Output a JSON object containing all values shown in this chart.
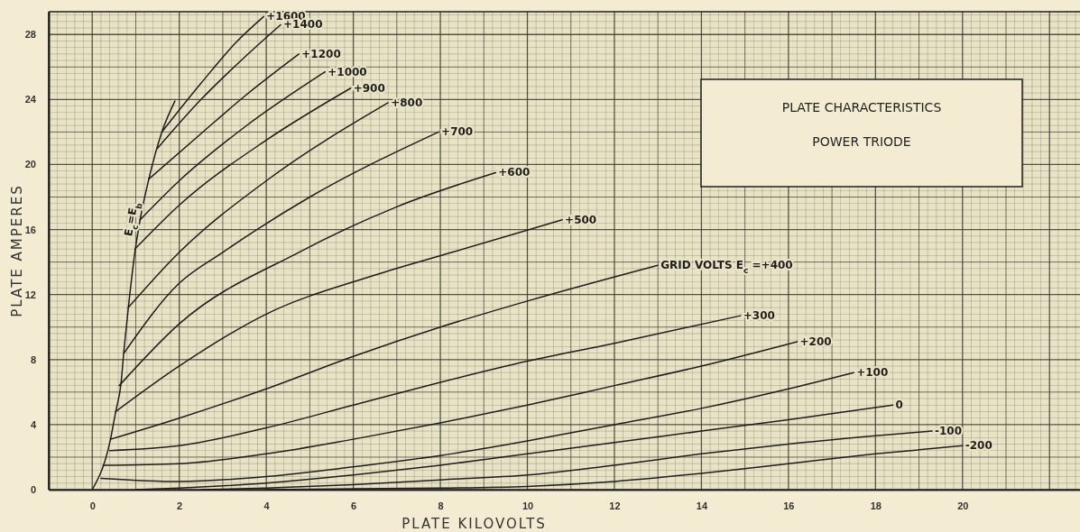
{
  "chart_data": {
    "type": "line",
    "title": "PLATE CHARACTERISTICS",
    "subtitle": "POWER TRIODE",
    "xlabel": "PLATE KILOVOLTS",
    "ylabel": "PLATE AMPERES",
    "xlim": [
      -1,
      22.7
    ],
    "ylim": [
      0,
      29.4
    ],
    "xticks": [
      0,
      2,
      4,
      6,
      8,
      10,
      12,
      14,
      16,
      18,
      20
    ],
    "yticks": [
      0,
      4,
      8,
      12,
      16,
      20,
      24,
      28
    ],
    "grid": true,
    "marker": "none",
    "line_style": "solid",
    "series": [
      {
        "name": "E$_{c}$=E$_{b}$",
        "color": "#1e1e1e",
        "x": [
          0,
          0.42,
          0.54,
          0.66,
          0.73,
          0.83,
          0.98,
          1.1,
          1.3,
          1.6,
          1.9
        ],
        "values": [
          0,
          3.1,
          4.8,
          6.5,
          8.6,
          11.2,
          14.6,
          16.6,
          19.1,
          22,
          23.9
        ]
      },
      {
        "name": "+1600",
        "color": "#1e1e1e",
        "x": [
          1.6,
          2.5,
          3.3,
          3.94
        ],
        "values": [
          22,
          25,
          27.5,
          29.1
        ]
      },
      {
        "name": "+1400",
        "color": "#1e1e1e",
        "x": [
          1.5,
          2.5,
          3.5,
          4.33
        ],
        "values": [
          21,
          24,
          26.6,
          28.6
        ]
      },
      {
        "name": "+1200",
        "color": "#1e1e1e",
        "x": [
          1.3,
          2.5,
          3.5,
          4.75
        ],
        "values": [
          19.1,
          21.9,
          24.2,
          26.8
        ]
      },
      {
        "name": "+1000",
        "color": "#1e1e1e",
        "x": [
          1.1,
          2,
          3.5,
          5.35
        ],
        "values": [
          16.6,
          19,
          22.3,
          25.7
        ]
      },
      {
        "name": "+900",
        "color": "#1e1e1e",
        "x": [
          0.98,
          2,
          4,
          5.94
        ],
        "values": [
          14.8,
          17.5,
          21.5,
          24.7
        ]
      },
      {
        "name": "+800",
        "color": "#1e1e1e",
        "x": [
          0.83,
          2,
          4,
          6.8
        ],
        "values": [
          11.2,
          14.6,
          19,
          23.8
        ]
      },
      {
        "name": "+700",
        "color": "#1e1e1e",
        "x": [
          0.73,
          2,
          3,
          5,
          7.96
        ],
        "values": [
          8.4,
          12.7,
          14.6,
          18,
          22
        ]
      },
      {
        "name": "+600",
        "color": "#1e1e1e",
        "x": [
          0.62,
          2,
          4.75,
          7,
          9.27
        ],
        "values": [
          6.4,
          10.2,
          14.6,
          17.4,
          19.5
        ]
      },
      {
        "name": "+500",
        "color": "#1e1e1e",
        "x": [
          0.54,
          2,
          4,
          6.5,
          8.27,
          10.8
        ],
        "values": [
          4.8,
          7.6,
          10.8,
          13.2,
          14.6,
          16.6
        ]
      },
      {
        "name": "GRID VOLTS E$_{c}$ =+400",
        "color": "#1e1e1e",
        "x": [
          0.42,
          2,
          4,
          6,
          8,
          10,
          13
        ],
        "values": [
          3.1,
          4.4,
          6.2,
          8.2,
          10,
          11.6,
          13.8
        ]
      },
      {
        "name": "+300",
        "color": "#1e1e1e",
        "x": [
          0.4,
          2,
          4,
          6,
          8,
          10,
          12,
          14.9
        ],
        "values": [
          2.4,
          2.7,
          3.8,
          5.2,
          6.6,
          7.9,
          9,
          10.7
        ]
      },
      {
        "name": "+200",
        "color": "#1e1e1e",
        "x": [
          0.25,
          2,
          4,
          6,
          8,
          10,
          12,
          14,
          16.2
        ],
        "values": [
          1.5,
          1.6,
          2.2,
          3.1,
          4.1,
          5.2,
          6.4,
          7.6,
          9.1
        ]
      },
      {
        "name": "+100",
        "color": "#1e1e1e",
        "x": [
          0.2,
          2,
          4,
          6,
          8,
          10,
          12,
          14,
          16,
          17.5
        ],
        "values": [
          0.7,
          0.5,
          0.8,
          1.4,
          2.1,
          3,
          4,
          5,
          6.2,
          7.2
        ]
      },
      {
        "name": "0",
        "color": "#1e1e1e",
        "x": [
          1,
          2,
          4,
          6,
          8,
          10,
          12,
          14,
          16,
          18.4
        ],
        "values": [
          0,
          0.1,
          0.4,
          0.9,
          1.5,
          2.2,
          2.9,
          3.6,
          4.3,
          5.2
        ]
      },
      {
        "name": "-100",
        "color": "#1e1e1e",
        "x": [
          2.5,
          4,
          6,
          8,
          10,
          12,
          14,
          16,
          19.3
        ],
        "values": [
          0,
          0.1,
          0.3,
          0.6,
          0.9,
          1.5,
          2.2,
          2.8,
          3.6
        ]
      },
      {
        "name": "-200",
        "color": "#1e1e1e",
        "x": [
          4,
          6,
          8,
          10,
          12,
          14,
          16,
          18,
          20
        ],
        "values": [
          0,
          0.05,
          0.1,
          0.2,
          0.5,
          1,
          1.6,
          2.2,
          2.7
        ]
      }
    ]
  }
}
